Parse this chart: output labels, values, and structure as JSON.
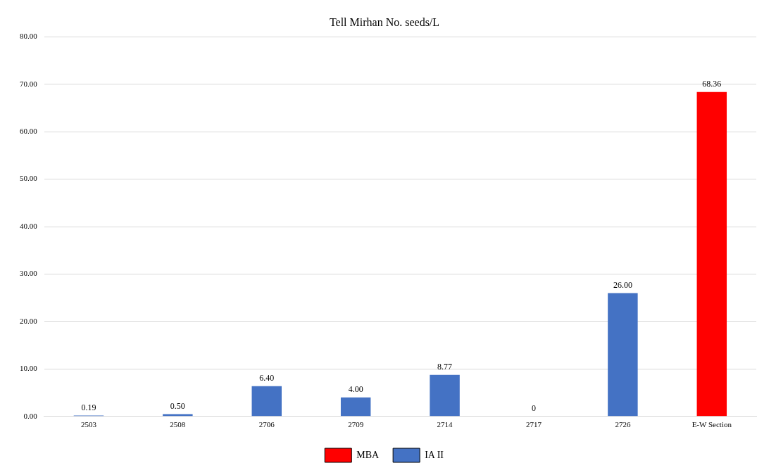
{
  "chart_data": {
    "type": "bar",
    "title": "Tell Mirhan No. seeds/L",
    "categories": [
      "2503",
      "2508",
      "2706",
      "2709",
      "2714",
      "2717",
      "2726",
      "E-W Section"
    ],
    "series": [
      {
        "name": "MBA",
        "color": "#ff0000",
        "values": [
          null,
          null,
          null,
          null,
          null,
          null,
          null,
          68.36
        ],
        "value_labels": [
          null,
          null,
          null,
          null,
          null,
          null,
          null,
          "68.36"
        ]
      },
      {
        "name": "IA II",
        "color": "#4472c4",
        "values": [
          0.19,
          0.5,
          6.4,
          4.0,
          8.77,
          0,
          26.0,
          null
        ],
        "value_labels": [
          "0.19",
          "0.50",
          "6.40",
          "4.00",
          "8.77",
          "0",
          "26.00",
          null
        ]
      }
    ],
    "ylim": [
      0,
      80
    ],
    "yticks": [
      {
        "value": 0,
        "label": "0.00"
      },
      {
        "value": 10,
        "label": "10.00"
      },
      {
        "value": 20,
        "label": "20.00"
      },
      {
        "value": 30,
        "label": "30.00"
      },
      {
        "value": 40,
        "label": "40.00"
      },
      {
        "value": 50,
        "label": "50.00"
      },
      {
        "value": 60,
        "label": "60.00"
      },
      {
        "value": 70,
        "label": "70.00"
      },
      {
        "value": 80,
        "label": "80.00"
      }
    ],
    "grid": "y",
    "legend": "bottom"
  }
}
